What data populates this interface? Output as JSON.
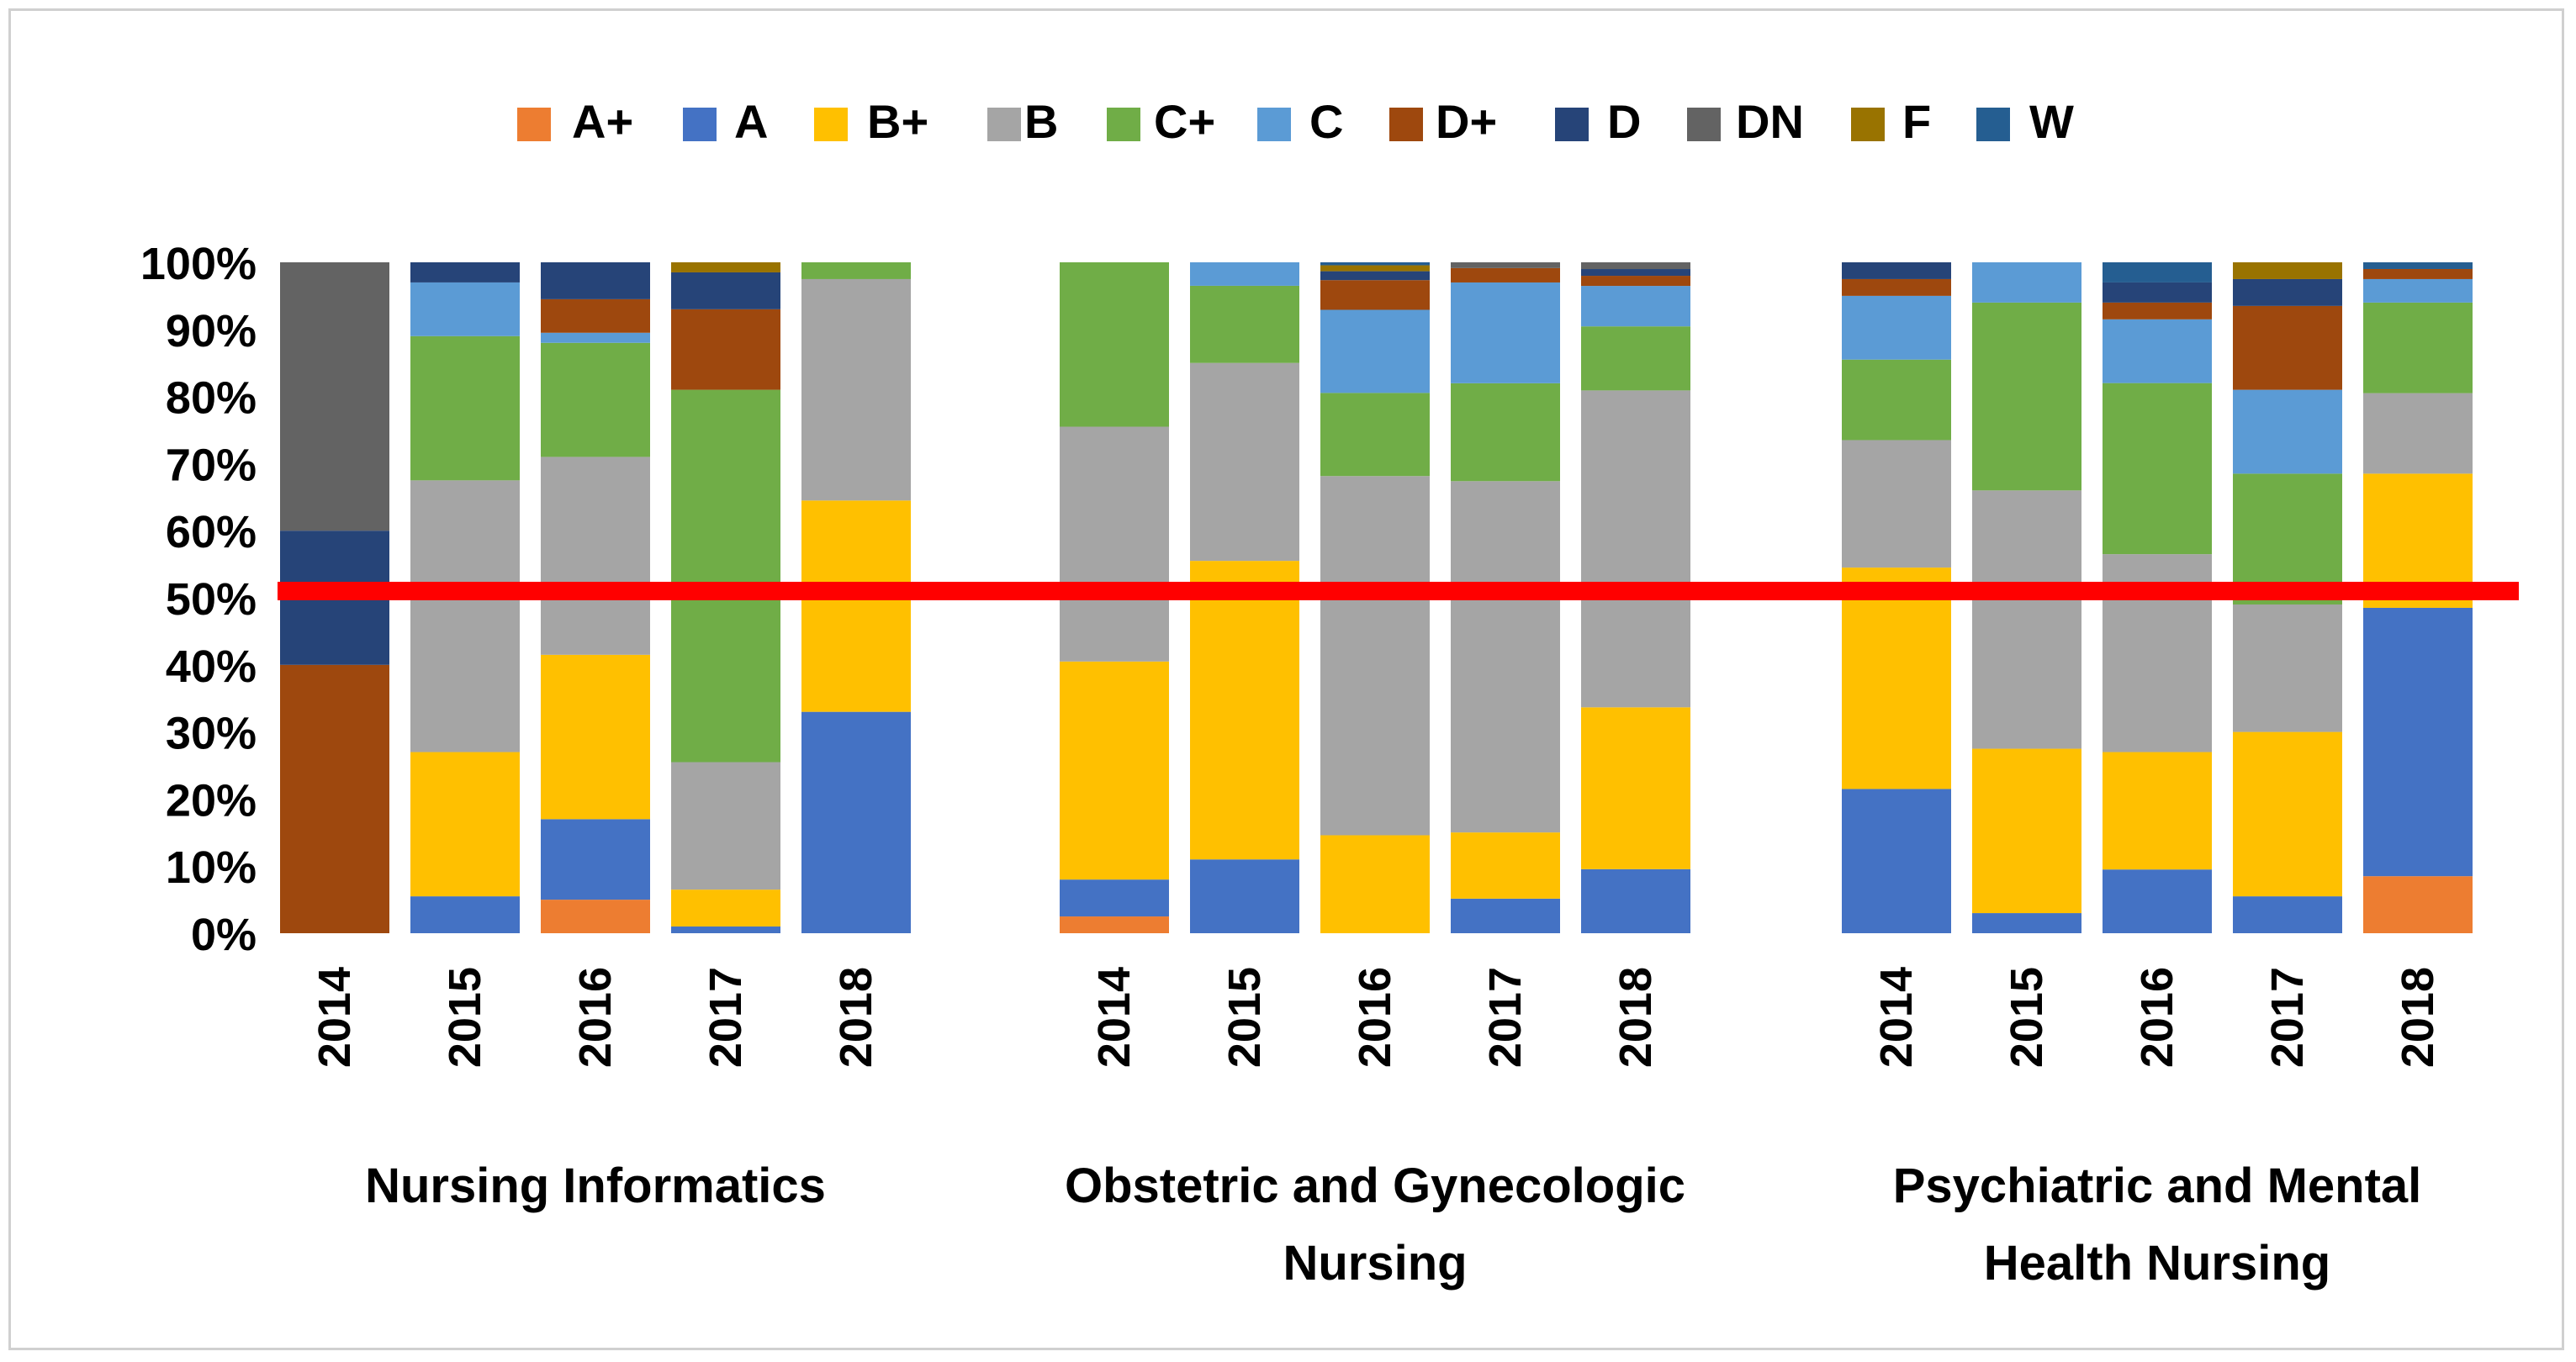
{
  "chart_data": {
    "type": "bar",
    "stacked": true,
    "ylim": [
      0,
      100
    ],
    "yticks": [
      0,
      10,
      20,
      30,
      40,
      50,
      60,
      70,
      80,
      90,
      100
    ],
    "ytick_suffix": "%",
    "grid": false,
    "legend_position": "top",
    "reference_line": {
      "value": 51,
      "color": "#ff0000"
    },
    "series": [
      {
        "name": "A+",
        "color": "#ed7d31"
      },
      {
        "name": "A",
        "color": "#4472c4"
      },
      {
        "name": "B+",
        "color": "#ffc000"
      },
      {
        "name": "B",
        "color": "#a5a5a5"
      },
      {
        "name": "C+",
        "color": "#70ad47"
      },
      {
        "name": "C",
        "color": "#5b9bd5"
      },
      {
        "name": "D+",
        "color": "#9e480e"
      },
      {
        "name": "D",
        "color": "#264478"
      },
      {
        "name": "DN",
        "color": "#636363"
      },
      {
        "name": "F",
        "color": "#997300"
      },
      {
        "name": "W",
        "color": "#255e91"
      }
    ],
    "groups": [
      {
        "label_lines": [
          "Nursing Informatics"
        ],
        "bars": [
          {
            "year": "2014",
            "values": [
              0,
              0,
              0,
              0,
              0,
              0,
              40,
              20,
              40,
              0,
              0
            ]
          },
          {
            "year": "2015",
            "values": [
              0,
              5.5,
              21.5,
              40.5,
              21.5,
              8,
              0,
              3,
              0,
              0,
              0
            ]
          },
          {
            "year": "2016",
            "values": [
              5,
              12,
              24.5,
              29.5,
              17,
              1.5,
              5,
              5.5,
              0,
              0,
              0
            ]
          },
          {
            "year": "2017",
            "values": [
              0,
              1,
              5.5,
              19,
              55.5,
              0,
              12,
              5.5,
              0,
              1.5,
              0
            ]
          },
          {
            "year": "2018",
            "values": [
              0,
              33,
              31.5,
              33,
              2.5,
              0,
              0,
              0,
              0,
              0,
              0
            ]
          }
        ]
      },
      {
        "label_lines": [
          "Obstetric and Gynecologic",
          "Nursing"
        ],
        "bars": [
          {
            "year": "2014",
            "values": [
              2.5,
              5.5,
              32.5,
              35,
              24.5,
              0,
              0,
              0,
              0,
              0,
              0
            ]
          },
          {
            "year": "2015",
            "values": [
              0,
              11,
              44.5,
              29.5,
              11.5,
              3.5,
              0,
              0,
              0,
              0,
              0
            ]
          },
          {
            "year": "2016",
            "values": [
              0,
              0,
              16.5,
              60.5,
              14,
              14,
              5,
              1.5,
              0,
              1,
              0.5
            ]
          },
          {
            "year": "2017",
            "values": [
              0,
              6,
              11.5,
              61,
              17,
              17.5,
              2.5,
              0,
              1,
              0,
              0
            ]
          },
          {
            "year": "2018",
            "values": [
              0,
              9.5,
              24,
              47,
              9.5,
              6,
              1.5,
              1,
              1,
              0,
              0
            ]
          }
        ]
      },
      {
        "label_lines": [
          "Psychiatric and Mental",
          "Health Nursing"
        ],
        "bars": [
          {
            "year": "2014",
            "values": [
              0,
              21.5,
              33,
              19,
              12,
              9.5,
              2.5,
              2.5,
              0,
              0,
              0
            ]
          },
          {
            "year": "2015",
            "values": [
              0,
              3,
              24.5,
              38.5,
              28,
              6,
              0,
              0,
              0,
              0,
              0
            ]
          },
          {
            "year": "2016",
            "values": [
              0,
              9.5,
              17.5,
              29.5,
              25.5,
              9.5,
              2.5,
              3,
              0,
              0,
              3
            ]
          },
          {
            "year": "2017",
            "values": [
              0,
              5.5,
              24.5,
              19,
              19.5,
              12.5,
              12.5,
              4,
              0,
              2.5,
              0
            ]
          },
          {
            "year": "2018",
            "values": [
              8.5,
              40,
              20,
              12,
              13.5,
              3.5,
              1.5,
              0,
              0,
              0,
              1
            ]
          }
        ]
      }
    ]
  }
}
